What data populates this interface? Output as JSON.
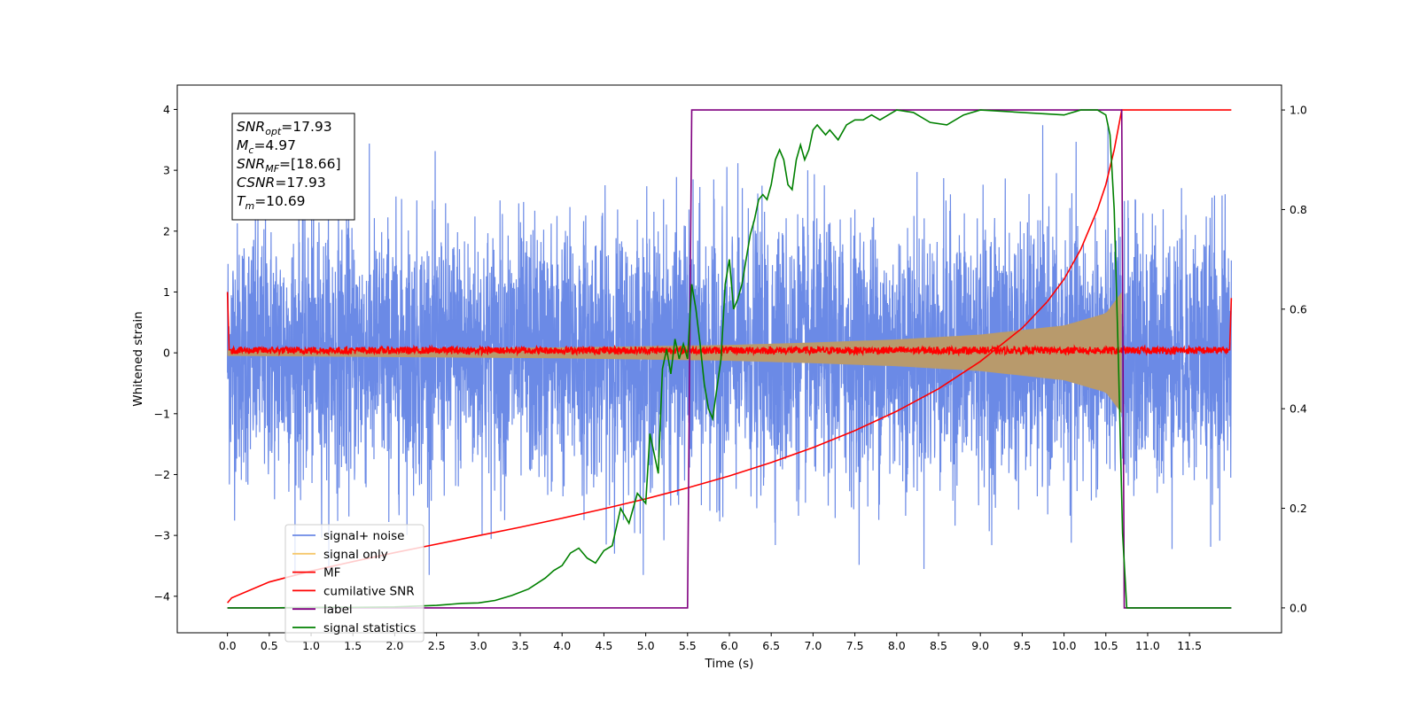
{
  "chart_data": {
    "type": "line",
    "xlabel": "Time (s)",
    "ylabel": "Whitened strain",
    "xlim": [
      -0.6,
      12.6
    ],
    "ylim": [
      -4.6,
      4.4
    ],
    "ylim_right": [
      -0.05,
      1.05
    ],
    "x_ticks": [
      "0.0",
      "0.5",
      "1.0",
      "1.5",
      "2.0",
      "2.5",
      "3.0",
      "3.5",
      "4.0",
      "4.5",
      "5.0",
      "5.5",
      "6.0",
      "6.5",
      "7.0",
      "7.5",
      "8.0",
      "8.5",
      "9.0",
      "9.5",
      "10.0",
      "10.5",
      "11.0",
      "11.5"
    ],
    "y_ticks": [
      "4",
      "3",
      "2",
      "1",
      "0",
      "−1",
      "−2",
      "−3",
      "−4"
    ],
    "y_ticks_right": [
      "1.0",
      "0.8",
      "0.6",
      "0.4",
      "0.2",
      "0.0"
    ],
    "legend_location": "lower-left",
    "grid": false,
    "info_box": {
      "lines": [
        {
          "sym": "SNR",
          "sub": "opt",
          "val": "=17.93"
        },
        {
          "sym": "M",
          "sub": "c",
          "val": "=4.97"
        },
        {
          "sym": "SNR",
          "sub": "MF",
          "val": "=[18.66]"
        },
        {
          "sym": "CSNR",
          "sub": "",
          "val": "=17.93"
        },
        {
          "sym": "T",
          "sub": "m",
          "val": "=10.69"
        }
      ]
    },
    "series": [
      {
        "name": "signal+ noise",
        "axis": "left",
        "color": "#6b8ae6",
        "kind": "noise",
        "description_range": [
          -3.6,
          3.9
        ],
        "x_range": [
          0.0,
          12.0
        ]
      },
      {
        "name": "signal only",
        "axis": "left",
        "color": "#f5c76b",
        "kind": "chirp",
        "envelope": {
          "x": [
            0,
            1,
            2,
            3,
            4,
            5,
            6,
            7,
            8,
            9,
            10,
            10.5,
            10.69
          ],
          "amp": [
            0.05,
            0.06,
            0.07,
            0.08,
            0.09,
            0.11,
            0.13,
            0.17,
            0.22,
            0.3,
            0.45,
            0.65,
            1.0
          ]
        }
      },
      {
        "name": "MF",
        "axis": "left",
        "color": "#ff0000",
        "kind": "mf",
        "x": [
          0.0,
          0.02,
          11.98,
          12.0
        ],
        "y": [
          1.0,
          0.05,
          0.05,
          0.9
        ]
      },
      {
        "name": "cumilative SNR",
        "axis": "right",
        "color": "#ff0000",
        "x": [
          0.0,
          0.05,
          0.5,
          1.0,
          1.5,
          2.0,
          2.5,
          3.0,
          3.5,
          4.0,
          4.5,
          5.0,
          5.5,
          6.0,
          6.5,
          7.0,
          7.5,
          8.0,
          8.5,
          9.0,
          9.5,
          9.8,
          10.0,
          10.2,
          10.4,
          10.5,
          10.6,
          10.69,
          12.0
        ],
        "y": [
          0.01,
          0.02,
          0.052,
          0.074,
          0.093,
          0.111,
          0.128,
          0.145,
          0.162,
          0.18,
          0.199,
          0.219,
          0.241,
          0.265,
          0.292,
          0.322,
          0.356,
          0.395,
          0.44,
          0.495,
          0.562,
          0.615,
          0.66,
          0.72,
          0.8,
          0.85,
          0.92,
          1.0,
          1.0
        ]
      },
      {
        "name": "label",
        "axis": "right",
        "color": "#800080",
        "x": [
          0.0,
          5.5,
          5.55,
          10.69,
          10.72,
          12.0
        ],
        "y": [
          0.0,
          0.0,
          1.0,
          1.0,
          0.0,
          0.0
        ]
      },
      {
        "name": "signal statistics",
        "axis": "right",
        "color": "#008000",
        "x": [
          0.0,
          0.5,
          1.0,
          1.5,
          2.0,
          2.5,
          2.8,
          3.0,
          3.2,
          3.4,
          3.6,
          3.8,
          3.9,
          4.0,
          4.1,
          4.2,
          4.3,
          4.4,
          4.5,
          4.6,
          4.7,
          4.8,
          4.9,
          5.0,
          5.05,
          5.1,
          5.15,
          5.2,
          5.25,
          5.3,
          5.35,
          5.4,
          5.45,
          5.5,
          5.55,
          5.6,
          5.65,
          5.7,
          5.75,
          5.8,
          5.85,
          5.9,
          5.95,
          6.0,
          6.05,
          6.1,
          6.15,
          6.2,
          6.25,
          6.3,
          6.35,
          6.4,
          6.45,
          6.5,
          6.55,
          6.6,
          6.65,
          6.7,
          6.75,
          6.8,
          6.85,
          6.9,
          6.95,
          7.0,
          7.05,
          7.1,
          7.15,
          7.2,
          7.3,
          7.4,
          7.5,
          7.6,
          7.7,
          7.8,
          7.9,
          8.0,
          8.2,
          8.4,
          8.6,
          8.8,
          9.0,
          9.5,
          10.0,
          10.2,
          10.4,
          10.5,
          10.55,
          10.6,
          10.65,
          10.7,
          10.75,
          12.0
        ],
        "y": [
          0.0,
          0.0,
          0.001,
          0.001,
          0.002,
          0.005,
          0.009,
          0.01,
          0.015,
          0.025,
          0.038,
          0.06,
          0.075,
          0.085,
          0.11,
          0.12,
          0.1,
          0.09,
          0.115,
          0.125,
          0.2,
          0.17,
          0.23,
          0.21,
          0.35,
          0.31,
          0.27,
          0.48,
          0.52,
          0.47,
          0.54,
          0.5,
          0.53,
          0.5,
          0.65,
          0.6,
          0.53,
          0.45,
          0.4,
          0.38,
          0.44,
          0.5,
          0.65,
          0.7,
          0.6,
          0.62,
          0.65,
          0.7,
          0.75,
          0.78,
          0.82,
          0.83,
          0.82,
          0.85,
          0.9,
          0.92,
          0.9,
          0.85,
          0.84,
          0.9,
          0.93,
          0.9,
          0.92,
          0.96,
          0.97,
          0.96,
          0.95,
          0.96,
          0.94,
          0.97,
          0.98,
          0.98,
          0.99,
          0.98,
          0.99,
          1.0,
          0.995,
          0.975,
          0.97,
          0.99,
          1.0,
          0.995,
          0.99,
          1.0,
          1.0,
          0.99,
          0.95,
          0.8,
          0.5,
          0.15,
          0.0,
          0.0
        ]
      }
    ]
  }
}
